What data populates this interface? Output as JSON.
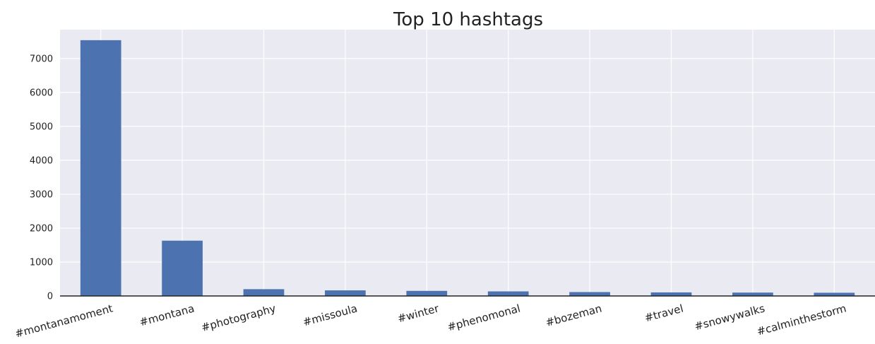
{
  "chart_data": {
    "type": "bar",
    "title": "Top 10 hashtags",
    "xlabel": "",
    "ylabel": "",
    "categories": [
      "#montanamoment",
      "#montana",
      "#photography",
      "#missoula",
      "#winter",
      "#phenomonal",
      "#bozeman",
      "#travel",
      "#snowywalks",
      "#calminthestorm"
    ],
    "values": [
      7540,
      1630,
      200,
      165,
      150,
      135,
      115,
      105,
      100,
      95
    ],
    "ylim": [
      0,
      7850
    ],
    "yticks": [
      0,
      1000,
      2000,
      3000,
      4000,
      5000,
      6000,
      7000
    ],
    "grid": true,
    "legend": "none",
    "colors": {
      "bar": "#4c72b0",
      "plot_background": "#eaeaf2",
      "grid": "#ffffff",
      "axis": "#222222"
    }
  }
}
